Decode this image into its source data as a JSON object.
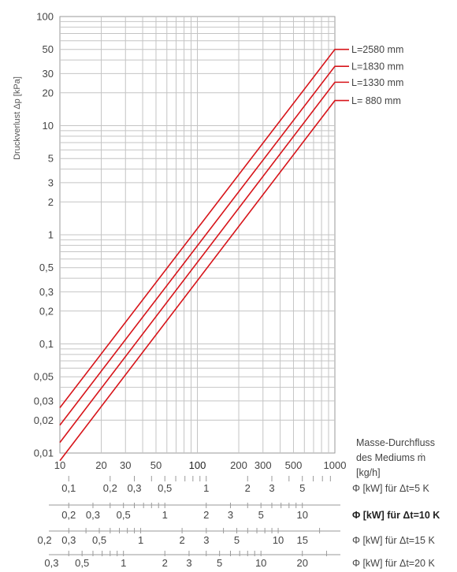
{
  "chart_data": {
    "type": "line",
    "scale": "log-log",
    "ylabel": "Druckverlust Δp [kPa]",
    "xlabel": "Masse-Durchfluss des Mediums ṁ [kg/h]",
    "xlabel_lines": [
      "Masse-Durchfluss",
      "des Mediums ṁ",
      "[kg/h]"
    ],
    "xlim": [
      10,
      1000
    ],
    "ylim": [
      0.01,
      100
    ],
    "grid": true,
    "x_ticks": [
      10,
      20,
      30,
      50,
      100,
      200,
      300,
      500,
      1000
    ],
    "x_tick_labels": [
      "10",
      "20",
      "30",
      "50",
      "100",
      "200",
      "300",
      "500",
      "1000"
    ],
    "y_ticks": [
      0.01,
      0.02,
      0.03,
      0.05,
      0.1,
      0.2,
      0.3,
      0.5,
      1,
      2,
      3,
      5,
      10,
      20,
      30,
      50,
      100
    ],
    "y_tick_labels": [
      "0,01",
      "0,02",
      "0,03",
      "0,05",
      "0,1",
      "0,2",
      "0,3",
      "0,5",
      "1",
      "2",
      "3",
      "5",
      "10",
      "20",
      "30",
      "50",
      "100"
    ],
    "line_color": "#d7141a",
    "series": [
      {
        "name": "L=2580 mm",
        "x": [
          10,
          1000
        ],
        "y": [
          0.026,
          50
        ]
      },
      {
        "name": "L=1830 mm",
        "x": [
          10,
          1000
        ],
        "y": [
          0.018,
          35
        ]
      },
      {
        "name": "L=1330 mm",
        "x": [
          10,
          1000
        ],
        "y": [
          0.0125,
          25
        ]
      },
      {
        "name": "L= 880 mm",
        "x": [
          10,
          1000
        ],
        "y": [
          0.0085,
          17
        ]
      }
    ],
    "secondary_axes": [
      {
        "label": "Φ [kW] für Δt=5 K",
        "bold": false,
        "ticks": [
          0.1,
          0.2,
          0.3,
          0.5,
          1,
          2,
          3,
          5
        ],
        "tick_labels": [
          "0,1",
          "0,2",
          "0,3",
          "0,5",
          "1",
          "2",
          "3",
          "5"
        ]
      },
      {
        "label": "Φ [kW] für Δt=10 K",
        "bold": true,
        "ticks": [
          0.2,
          0.3,
          0.5,
          1,
          2,
          3,
          5,
          10
        ],
        "tick_labels": [
          "0,2",
          "0,3",
          "0,5",
          "1",
          "2",
          "3",
          "5",
          "10"
        ]
      },
      {
        "label": "Φ [kW] für Δt=15 K",
        "bold": false,
        "ticks": [
          0.2,
          0.3,
          0.5,
          1,
          2,
          3,
          5,
          10,
          15
        ],
        "tick_labels": [
          "0,2",
          "0,3",
          "0,5",
          "1",
          "2",
          "3",
          "5",
          "10",
          "15"
        ]
      },
      {
        "label": "Φ [kW] für Δt=20 K",
        "bold": false,
        "ticks": [
          0.3,
          0.5,
          1,
          2,
          3,
          5,
          10,
          20
        ],
        "tick_labels": [
          "0,3",
          "0,5",
          "1",
          "2",
          "3",
          "5",
          "10",
          "20"
        ]
      }
    ]
  }
}
